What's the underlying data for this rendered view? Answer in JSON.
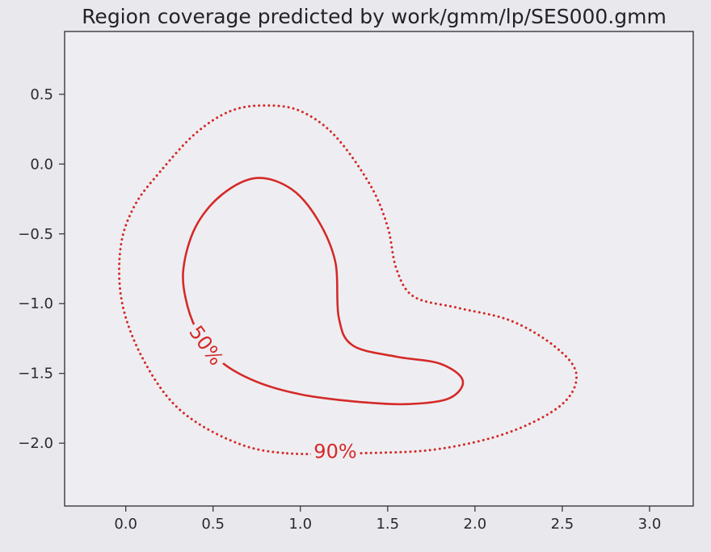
{
  "chart_data": {
    "type": "contour",
    "title": "Region coverage predicted by work/gmm/lp/SES000.gmm",
    "xlabel": "",
    "ylabel": "",
    "xlim": [
      -0.35,
      3.25
    ],
    "ylim": [
      -2.45,
      0.95
    ],
    "x_ticks": [
      0.0,
      0.5,
      1.0,
      1.5,
      2.0,
      2.5,
      3.0
    ],
    "x_tick_labels": [
      "0.0",
      "0.5",
      "1.0",
      "1.5",
      "2.0",
      "2.5",
      "3.0"
    ],
    "y_ticks": [
      0.5,
      0.0,
      -0.5,
      -1.0,
      -1.5,
      -2.0
    ],
    "y_tick_labels": [
      "0.5",
      "0.0",
      "−0.5",
      "−1.0",
      "−1.5",
      "−2.0"
    ],
    "grid": false,
    "contours": [
      {
        "level": "90%",
        "label": "90%",
        "style": "dotted",
        "color": "#d42a28",
        "label_at": [
          1.2,
          -2.06
        ],
        "points": [
          [
            0.9,
            -2.07
          ],
          [
            0.6,
            -1.98
          ],
          [
            0.3,
            -1.75
          ],
          [
            0.1,
            -1.4
          ],
          [
            -0.02,
            -1.0
          ],
          [
            -0.03,
            -0.6
          ],
          [
            0.05,
            -0.3
          ],
          [
            0.2,
            -0.05
          ],
          [
            0.4,
            0.22
          ],
          [
            0.6,
            0.38
          ],
          [
            0.8,
            0.42
          ],
          [
            1.0,
            0.38
          ],
          [
            1.2,
            0.2
          ],
          [
            1.4,
            -0.15
          ],
          [
            1.5,
            -0.45
          ],
          [
            1.55,
            -0.75
          ],
          [
            1.65,
            -0.95
          ],
          [
            1.9,
            -1.03
          ],
          [
            2.2,
            -1.12
          ],
          [
            2.45,
            -1.3
          ],
          [
            2.58,
            -1.5
          ],
          [
            2.5,
            -1.72
          ],
          [
            2.2,
            -1.92
          ],
          [
            1.8,
            -2.04
          ],
          [
            1.4,
            -2.07
          ],
          [
            0.9,
            -2.07
          ]
        ]
      },
      {
        "level": "50%",
        "label": "50%",
        "style": "solid",
        "color": "#d42a28",
        "label_at": [
          0.46,
          -1.3
        ],
        "points": [
          [
            0.35,
            -1.0
          ],
          [
            0.33,
            -0.75
          ],
          [
            0.4,
            -0.45
          ],
          [
            0.55,
            -0.22
          ],
          [
            0.75,
            -0.1
          ],
          [
            0.95,
            -0.18
          ],
          [
            1.1,
            -0.4
          ],
          [
            1.2,
            -0.7
          ],
          [
            1.22,
            -1.1
          ],
          [
            1.3,
            -1.3
          ],
          [
            1.55,
            -1.38
          ],
          [
            1.8,
            -1.43
          ],
          [
            1.93,
            -1.55
          ],
          [
            1.85,
            -1.68
          ],
          [
            1.6,
            -1.72
          ],
          [
            1.3,
            -1.7
          ],
          [
            1.0,
            -1.65
          ],
          [
            0.75,
            -1.56
          ],
          [
            0.55,
            -1.42
          ],
          [
            0.42,
            -1.22
          ],
          [
            0.35,
            -1.0
          ]
        ]
      }
    ]
  }
}
